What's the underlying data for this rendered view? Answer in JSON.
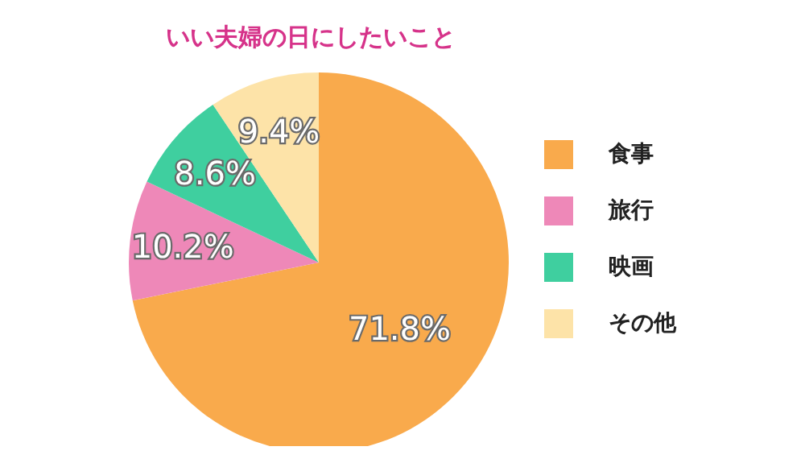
{
  "chart_data": {
    "type": "pie",
    "title": "いい夫婦の日にしたいこと",
    "categories": [
      "食事",
      "旅行",
      "映画",
      "その他"
    ],
    "values": [
      71.8,
      10.2,
      8.6,
      9.4
    ],
    "colors": [
      "#f9aa4c",
      "#ee88b8",
      "#3fcf9f",
      "#fde3a8"
    ],
    "value_labels": [
      "71.8%",
      "10.2%",
      "8.6%",
      "9.4%"
    ],
    "legend": "right"
  }
}
